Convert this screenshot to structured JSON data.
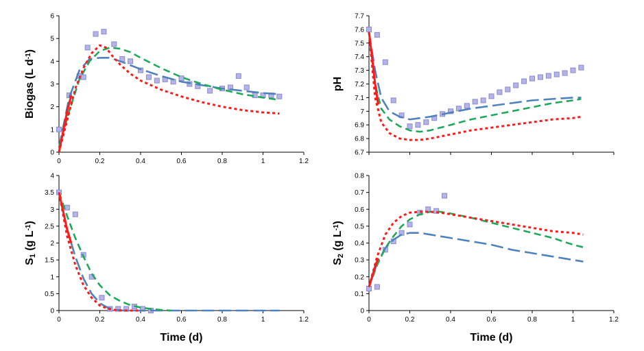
{
  "colors": {
    "data_marker_fill": "#b4b4e6",
    "data_marker_stroke": "#8a8ad0",
    "model_blue": "#4f81bd",
    "model_green": "#1fa85b",
    "model_red": "#ff1a1a"
  },
  "chart_data": [
    {
      "type": "line",
      "panel": "top-left",
      "xlabel": "",
      "ylabel": "Biogas (L d-1)",
      "ylabel_parts": {
        "base": "Biogas (L d",
        "sup": "-1",
        "tail": ")"
      },
      "xlim": [
        0,
        1.2
      ],
      "ylim": [
        0,
        6
      ],
      "xticks": [
        0,
        0.2,
        0.4,
        0.6,
        0.8,
        1,
        1.2
      ],
      "xtick_labels": [
        "0",
        "0.2",
        "0.4",
        "0.6",
        "0.8",
        "1",
        "1.2"
      ],
      "yticks": [
        0,
        1,
        2,
        3,
        4,
        5,
        6
      ],
      "ytick_labels": [
        "0",
        "1",
        "2",
        "3",
        "4",
        "5",
        "6"
      ],
      "series": [
        {
          "style": "markers",
          "color": "#b4b4e6",
          "x": [
            0,
            0.05,
            0.1,
            0.12,
            0.14,
            0.18,
            0.22,
            0.27,
            0.31,
            0.35,
            0.4,
            0.44,
            0.48,
            0.52,
            0.56,
            0.6,
            0.64,
            0.68,
            0.74,
            0.8,
            0.84,
            0.88,
            0.92,
            0.96,
            1.0,
            1.04,
            1.08
          ],
          "y": [
            1.0,
            2.5,
            3.35,
            3.3,
            4.6,
            5.2,
            5.3,
            4.75,
            4.1,
            4.0,
            3.6,
            3.3,
            3.15,
            3.2,
            3.1,
            3.25,
            3.0,
            2.9,
            2.7,
            2.8,
            2.85,
            3.35,
            2.85,
            2.5,
            2.5,
            2.5,
            2.45
          ]
        },
        {
          "style": "long-dash",
          "color": "#4f81bd",
          "x": [
            0,
            0.05,
            0.1,
            0.15,
            0.2,
            0.25,
            0.3,
            0.4,
            0.5,
            0.6,
            0.7,
            0.8,
            0.9,
            1.0,
            1.08
          ],
          "y": [
            0.2,
            2.4,
            3.6,
            4.1,
            4.15,
            4.15,
            4.0,
            3.65,
            3.35,
            3.1,
            2.95,
            2.8,
            2.7,
            2.6,
            2.55
          ]
        },
        {
          "style": "dash",
          "color": "#1fa85b",
          "x": [
            0,
            0.05,
            0.1,
            0.15,
            0.2,
            0.25,
            0.3,
            0.35,
            0.4,
            0.5,
            0.6,
            0.7,
            0.8,
            0.9,
            1.0,
            1.08
          ],
          "y": [
            0.2,
            1.8,
            3.2,
            4.0,
            4.45,
            4.6,
            4.55,
            4.4,
            4.15,
            3.7,
            3.3,
            3.0,
            2.75,
            2.55,
            2.4,
            2.3
          ]
        },
        {
          "style": "dot",
          "color": "#ff1a1a",
          "x": [
            0,
            0.04,
            0.08,
            0.12,
            0.16,
            0.2,
            0.23,
            0.26,
            0.3,
            0.35,
            0.4,
            0.5,
            0.6,
            0.7,
            0.8,
            0.9,
            1.0,
            1.08
          ],
          "y": [
            0,
            1.4,
            2.8,
            3.7,
            4.35,
            4.7,
            4.6,
            4.25,
            3.85,
            3.45,
            3.15,
            2.75,
            2.45,
            2.2,
            2.0,
            1.85,
            1.75,
            1.7
          ]
        },
        {
          "style": "solid",
          "color": "#ff1a1a",
          "x": [
            0,
            0.02,
            0.04,
            0.06
          ],
          "y": [
            0,
            0.9,
            1.8,
            2.5
          ]
        }
      ]
    },
    {
      "type": "line",
      "panel": "top-right",
      "xlabel": "",
      "ylabel": "pH",
      "ylabel_parts": {
        "base": "pH",
        "sup": "",
        "tail": ""
      },
      "xlim": [
        0,
        1.2
      ],
      "ylim": [
        6.7,
        7.7
      ],
      "xticks": [
        0,
        0.2,
        0.4,
        0.6,
        0.8,
        1,
        1.2
      ],
      "xtick_labels": [],
      "yticks": [
        6.7,
        6.8,
        6.9,
        7.0,
        7.1,
        7.2,
        7.3,
        7.4,
        7.5,
        7.6,
        7.7
      ],
      "ytick_labels": [
        "6.7",
        "6.8",
        "6.9",
        "7",
        "7.1",
        "7.2",
        "7.3",
        "7.4",
        "7.5",
        "7.6",
        "7.7"
      ],
      "series": [
        {
          "style": "markers",
          "color": "#b4b4e6",
          "x": [
            0,
            0.04,
            0.08,
            0.12,
            0.16,
            0.2,
            0.24,
            0.28,
            0.32,
            0.36,
            0.4,
            0.44,
            0.48,
            0.52,
            0.56,
            0.6,
            0.64,
            0.68,
            0.72,
            0.76,
            0.8,
            0.84,
            0.88,
            0.92,
            0.96,
            1.0,
            1.04
          ],
          "y": [
            7.6,
            7.56,
            7.36,
            7.08,
            6.97,
            6.89,
            6.9,
            6.92,
            6.95,
            6.98,
            7.0,
            7.02,
            7.04,
            7.07,
            7.08,
            7.11,
            7.14,
            7.16,
            7.19,
            7.22,
            7.24,
            7.25,
            7.26,
            7.27,
            7.28,
            7.3,
            7.32
          ]
        },
        {
          "style": "long-dash",
          "color": "#4f81bd",
          "x": [
            0,
            0.03,
            0.06,
            0.1,
            0.15,
            0.2,
            0.3,
            0.4,
            0.5,
            0.6,
            0.7,
            0.8,
            0.9,
            1.0,
            1.04
          ],
          "y": [
            7.58,
            7.3,
            7.1,
            7.0,
            6.96,
            6.94,
            6.96,
            6.99,
            7.02,
            7.04,
            7.06,
            7.08,
            7.09,
            7.1,
            7.1
          ]
        },
        {
          "style": "dash",
          "color": "#1fa85b",
          "x": [
            0,
            0.03,
            0.06,
            0.1,
            0.15,
            0.2,
            0.25,
            0.3,
            0.4,
            0.5,
            0.6,
            0.7,
            0.8,
            0.9,
            1.0,
            1.04
          ],
          "y": [
            7.58,
            7.2,
            7.02,
            6.94,
            6.89,
            6.86,
            6.85,
            6.86,
            6.9,
            6.94,
            6.97,
            7.0,
            7.03,
            7.06,
            7.08,
            7.09
          ]
        },
        {
          "style": "dot",
          "color": "#ff1a1a",
          "x": [
            0,
            0.03,
            0.06,
            0.1,
            0.15,
            0.2,
            0.25,
            0.3,
            0.4,
            0.5,
            0.6,
            0.7,
            0.8,
            0.9,
            1.0,
            1.04
          ],
          "y": [
            7.58,
            7.1,
            6.92,
            6.84,
            6.8,
            6.79,
            6.79,
            6.8,
            6.83,
            6.86,
            6.88,
            6.9,
            6.92,
            6.94,
            6.95,
            6.96
          ]
        },
        {
          "style": "solid",
          "color": "#ff1a1a",
          "x": [
            0,
            0.015,
            0.03,
            0.045
          ],
          "y": [
            7.58,
            7.4,
            7.2,
            7.05
          ]
        }
      ]
    },
    {
      "type": "line",
      "panel": "bottom-left",
      "xlabel": "Time (d)",
      "ylabel": "S1 (g L-1)",
      "ylabel_parts": {
        "base": "S",
        "sub": "1",
        "mid": " (g L",
        "sup": "-1",
        "tail": ")"
      },
      "xlim": [
        0,
        1.2
      ],
      "ylim": [
        0,
        4
      ],
      "xticks": [
        0,
        0.2,
        0.4,
        0.6,
        0.8,
        1,
        1.2
      ],
      "xtick_labels": [
        "0",
        "0.2",
        "0.4",
        "0.6",
        "0.8",
        "1",
        "1.2"
      ],
      "yticks": [
        0,
        0.5,
        1,
        1.5,
        2,
        2.5,
        3,
        3.5,
        4
      ],
      "ytick_labels": [
        "0",
        "0.5",
        "1",
        "1.5",
        "2",
        "2.5",
        "3",
        "3.5",
        "4"
      ],
      "series": [
        {
          "style": "markers",
          "color": "#b4b4e6",
          "x": [
            0,
            0.04,
            0.08,
            0.12,
            0.16,
            0.21,
            0.25,
            0.29,
            0.33,
            0.37,
            0.41,
            0.45
          ],
          "y": [
            3.5,
            3.05,
            2.85,
            1.65,
            1.0,
            0.38,
            0.05,
            0.05,
            0.05,
            0.12,
            0.05,
            0.0
          ]
        },
        {
          "style": "long-dash",
          "color": "#4f81bd",
          "x": [
            0,
            0.04,
            0.08,
            0.12,
            0.16,
            0.2,
            0.24,
            0.28,
            0.32,
            0.4,
            0.5,
            0.6,
            0.8,
            1.0,
            1.08
          ],
          "y": [
            3.5,
            2.4,
            1.6,
            0.95,
            0.5,
            0.22,
            0.08,
            0.02,
            0.0,
            0.0,
            0.0,
            0.0,
            0.0,
            0.0,
            0.0
          ]
        },
        {
          "style": "dash",
          "color": "#1fa85b",
          "x": [
            0,
            0.04,
            0.08,
            0.12,
            0.16,
            0.2,
            0.25,
            0.3,
            0.35,
            0.4,
            0.45,
            0.5,
            0.55
          ],
          "y": [
            3.5,
            2.8,
            2.15,
            1.6,
            1.1,
            0.75,
            0.45,
            0.28,
            0.16,
            0.09,
            0.05,
            0.02,
            0.0
          ]
        },
        {
          "style": "dot",
          "color": "#ff1a1a",
          "x": [
            0,
            0.04,
            0.08,
            0.12,
            0.16,
            0.2,
            0.24,
            0.28,
            0.32,
            0.4
          ],
          "y": [
            3.5,
            2.2,
            1.35,
            0.75,
            0.38,
            0.15,
            0.05,
            0.01,
            0.0,
            0.0
          ]
        },
        {
          "style": "solid",
          "color": "#ff1a1a",
          "x": [
            0,
            0.02,
            0.04,
            0.06
          ],
          "y": [
            3.5,
            2.95,
            2.4,
            2.0
          ]
        }
      ]
    },
    {
      "type": "line",
      "panel": "bottom-right",
      "xlabel": "Time (d)",
      "ylabel": "S2 (g L-1)",
      "ylabel_parts": {
        "base": "S",
        "sub": "2",
        "mid": " (g L",
        "sup": "-1",
        "tail": ")"
      },
      "xlim": [
        0,
        1.2
      ],
      "ylim": [
        0,
        0.8
      ],
      "xticks": [
        0,
        0.2,
        0.4,
        0.6,
        0.8,
        1,
        1.2
      ],
      "xtick_labels": [
        "0",
        "0.2",
        "0.4",
        "0.6",
        "0.8",
        "1",
        "1.2"
      ],
      "yticks": [
        0,
        0.1,
        0.2,
        0.3,
        0.4,
        0.5,
        0.6,
        0.7,
        0.8
      ],
      "ytick_labels": [
        "0",
        "0.1",
        "0.2",
        "0.3",
        "0.4",
        "0.5",
        "0.6",
        "0.7",
        "0.8"
      ],
      "series": [
        {
          "style": "markers",
          "color": "#b4b4e6",
          "x": [
            0,
            0.04,
            0.08,
            0.12,
            0.16,
            0.2,
            0.25,
            0.29,
            0.33,
            0.37
          ],
          "y": [
            0.13,
            0.14,
            0.36,
            0.41,
            0.46,
            0.51,
            0.58,
            0.6,
            0.59,
            0.68
          ]
        },
        {
          "style": "long-dash",
          "color": "#4f81bd",
          "x": [
            0,
            0.04,
            0.08,
            0.12,
            0.16,
            0.2,
            0.25,
            0.3,
            0.4,
            0.5,
            0.6,
            0.7,
            0.8,
            0.9,
            1.0,
            1.05
          ],
          "y": [
            0.14,
            0.28,
            0.37,
            0.42,
            0.45,
            0.46,
            0.46,
            0.45,
            0.43,
            0.41,
            0.39,
            0.36,
            0.34,
            0.32,
            0.3,
            0.29
          ]
        },
        {
          "style": "dash",
          "color": "#1fa85b",
          "x": [
            0,
            0.04,
            0.08,
            0.12,
            0.16,
            0.2,
            0.25,
            0.3,
            0.35,
            0.4,
            0.5,
            0.6,
            0.7,
            0.8,
            0.9,
            1.0,
            1.05
          ],
          "y": [
            0.14,
            0.27,
            0.37,
            0.44,
            0.5,
            0.54,
            0.57,
            0.585,
            0.585,
            0.575,
            0.55,
            0.52,
            0.49,
            0.46,
            0.43,
            0.39,
            0.375
          ]
        },
        {
          "style": "dot",
          "color": "#ff1a1a",
          "x": [
            0,
            0.04,
            0.08,
            0.12,
            0.16,
            0.2,
            0.25,
            0.3,
            0.35,
            0.4,
            0.5,
            0.6,
            0.7,
            0.8,
            0.9,
            1.0,
            1.05
          ],
          "y": [
            0.14,
            0.32,
            0.45,
            0.52,
            0.56,
            0.58,
            0.585,
            0.585,
            0.58,
            0.57,
            0.55,
            0.53,
            0.51,
            0.49,
            0.47,
            0.46,
            0.45
          ]
        },
        {
          "style": "solid",
          "color": "#ff1a1a",
          "x": [
            0,
            0.015,
            0.03,
            0.045
          ],
          "y": [
            0.14,
            0.2,
            0.26,
            0.31
          ]
        }
      ]
    }
  ]
}
